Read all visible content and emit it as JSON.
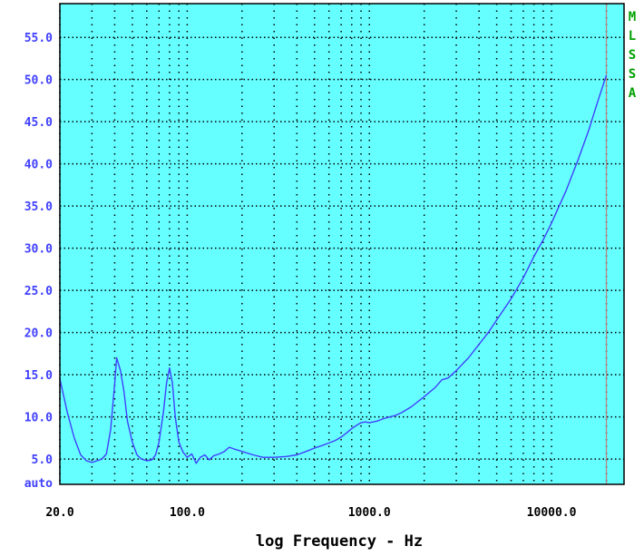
{
  "chart_data": {
    "type": "line",
    "xlabel": "log Frequency - Hz",
    "ylabel": "",
    "x_scale": "log",
    "xlim": [
      20,
      25000
    ],
    "ylim": [
      2.0,
      59.0
    ],
    "grid": true,
    "x_tick_labels": [
      {
        "value": 20,
        "label": "20.0"
      },
      {
        "value": 100,
        "label": "100.0"
      },
      {
        "value": 1000,
        "label": "1000.0"
      },
      {
        "value": 10000,
        "label": "10000.0"
      }
    ],
    "y_tick_labels": [
      {
        "value": 55,
        "label": "55.0"
      },
      {
        "value": 50,
        "label": "50.0"
      },
      {
        "value": 45,
        "label": "45.0"
      },
      {
        "value": 40,
        "label": "40.0"
      },
      {
        "value": 35,
        "label": "35.0"
      },
      {
        "value": 30,
        "label": "30.0"
      },
      {
        "value": 25,
        "label": "25.0"
      },
      {
        "value": 20,
        "label": "20.0"
      },
      {
        "value": 15,
        "label": "15.0"
      },
      {
        "value": 10,
        "label": "10.0"
      },
      {
        "value": 5,
        "label": "5.0"
      }
    ],
    "y_bottom_label": "auto",
    "side_label_letters": [
      "M",
      "L",
      "S",
      "S",
      "A"
    ],
    "cursor_frequency": 20000,
    "series": [
      {
        "values": [
          [
            20,
            14.5
          ],
          [
            22,
            10.5
          ],
          [
            24,
            7.5
          ],
          [
            26,
            5.5
          ],
          [
            28,
            4.8
          ],
          [
            30,
            4.6
          ],
          [
            32,
            4.8
          ],
          [
            34,
            5.0
          ],
          [
            36,
            5.6
          ],
          [
            38,
            8.5
          ],
          [
            40,
            14.0
          ],
          [
            41,
            17.0
          ],
          [
            43,
            15.5
          ],
          [
            45,
            13.0
          ],
          [
            47,
            9.5
          ],
          [
            50,
            7.0
          ],
          [
            53,
            5.5
          ],
          [
            56,
            5.0
          ],
          [
            60,
            4.8
          ],
          [
            64,
            4.9
          ],
          [
            67,
            5.5
          ],
          [
            70,
            7.0
          ],
          [
            74,
            10.5
          ],
          [
            77,
            14.0
          ],
          [
            80,
            15.8
          ],
          [
            83,
            14.0
          ],
          [
            86,
            10.0
          ],
          [
            90,
            7.0
          ],
          [
            95,
            5.8
          ],
          [
            100,
            5.2
          ],
          [
            106,
            5.6
          ],
          [
            112,
            4.5
          ],
          [
            118,
            5.2
          ],
          [
            125,
            5.5
          ],
          [
            132,
            4.9
          ],
          [
            140,
            5.4
          ],
          [
            150,
            5.6
          ],
          [
            160,
            5.9
          ],
          [
            170,
            6.4
          ],
          [
            180,
            6.2
          ],
          [
            200,
            5.9
          ],
          [
            230,
            5.5
          ],
          [
            260,
            5.2
          ],
          [
            300,
            5.2
          ],
          [
            350,
            5.3
          ],
          [
            400,
            5.5
          ],
          [
            450,
            5.9
          ],
          [
            500,
            6.3
          ],
          [
            550,
            6.6
          ],
          [
            600,
            6.9
          ],
          [
            650,
            7.2
          ],
          [
            700,
            7.6
          ],
          [
            750,
            8.1
          ],
          [
            800,
            8.6
          ],
          [
            850,
            9.0
          ],
          [
            900,
            9.3
          ],
          [
            950,
            9.4
          ],
          [
            1000,
            9.3
          ],
          [
            1100,
            9.5
          ],
          [
            1200,
            9.8
          ],
          [
            1300,
            10.0
          ],
          [
            1400,
            10.2
          ],
          [
            1500,
            10.5
          ],
          [
            1700,
            11.2
          ],
          [
            2000,
            12.4
          ],
          [
            2300,
            13.5
          ],
          [
            2500,
            14.4
          ],
          [
            2700,
            14.6
          ],
          [
            3000,
            15.5
          ],
          [
            3500,
            17.0
          ],
          [
            4000,
            18.6
          ],
          [
            4500,
            20.0
          ],
          [
            5000,
            21.5
          ],
          [
            6000,
            24.0
          ],
          [
            7000,
            26.5
          ],
          [
            8000,
            29.0
          ],
          [
            9000,
            31.0
          ],
          [
            10000,
            33.0
          ],
          [
            11000,
            35.0
          ],
          [
            12000,
            36.8
          ],
          [
            14000,
            40.5
          ],
          [
            16000,
            44.0
          ],
          [
            18000,
            47.5
          ],
          [
            20000,
            50.5
          ]
        ]
      }
    ]
  },
  "colors": {
    "plot_bg": "#66ffff",
    "grid": "#000000",
    "curve": "#4040ff",
    "y_tick_text": "#4040ff",
    "side_text": "#00a000",
    "cursor": "#c08080"
  }
}
